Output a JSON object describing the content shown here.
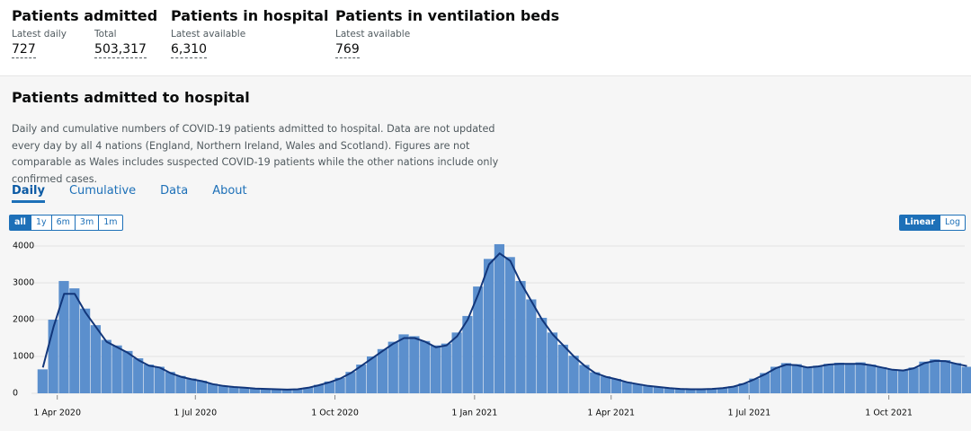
{
  "header": {
    "metrics": [
      {
        "title": "Patients admitted",
        "items": [
          {
            "label": "Latest daily",
            "value": "727"
          },
          {
            "label": "Total",
            "value": "503,317"
          }
        ]
      },
      {
        "title": "Patients in hospital",
        "items": [
          {
            "label": "Latest available",
            "value": "6,310"
          }
        ]
      },
      {
        "title": "Patients in ventilation beds",
        "items": [
          {
            "label": "Latest available",
            "value": "769"
          }
        ]
      }
    ]
  },
  "card": {
    "title": "Patients admitted to hospital",
    "description": "Daily and cumulative numbers of COVID-19 patients admitted to hospital. Data are not updated every day by all 4 nations (England, Northern Ireland, Wales and Scotland). Figures are not comparable as Wales includes suspected COVID-19 patients while the other nations include only confirmed cases.",
    "tabs": [
      "Daily",
      "Cumulative",
      "Data",
      "About"
    ],
    "range_buttons": [
      "all",
      "1y",
      "6m",
      "3m",
      "1m"
    ],
    "scale_buttons": [
      "Linear",
      "Log"
    ]
  },
  "chart_data": {
    "type": "bar",
    "x": [
      "2020-03-19",
      "2020-03-26",
      "2020-04-02",
      "2020-04-09",
      "2020-04-16",
      "2020-04-23",
      "2020-04-30",
      "2020-05-07",
      "2020-05-14",
      "2020-05-21",
      "2020-05-28",
      "2020-06-04",
      "2020-06-11",
      "2020-06-18",
      "2020-06-25",
      "2020-07-02",
      "2020-07-09",
      "2020-07-16",
      "2020-07-23",
      "2020-07-30",
      "2020-08-06",
      "2020-08-13",
      "2020-08-20",
      "2020-08-27",
      "2020-09-03",
      "2020-09-10",
      "2020-09-17",
      "2020-09-24",
      "2020-10-01",
      "2020-10-08",
      "2020-10-15",
      "2020-10-22",
      "2020-10-29",
      "2020-11-05",
      "2020-11-12",
      "2020-11-19",
      "2020-11-26",
      "2020-12-03",
      "2020-12-10",
      "2020-12-17",
      "2020-12-24",
      "2020-12-31",
      "2021-01-07",
      "2021-01-14",
      "2021-01-21",
      "2021-01-28",
      "2021-02-04",
      "2021-02-11",
      "2021-02-18",
      "2021-02-25",
      "2021-03-04",
      "2021-03-11",
      "2021-03-18",
      "2021-03-25",
      "2021-04-01",
      "2021-04-08",
      "2021-04-15",
      "2021-04-22",
      "2021-04-29",
      "2021-05-06",
      "2021-05-13",
      "2021-05-20",
      "2021-05-27",
      "2021-06-03",
      "2021-06-10",
      "2021-06-17",
      "2021-06-24",
      "2021-07-01",
      "2021-07-08",
      "2021-07-15",
      "2021-07-22",
      "2021-07-29",
      "2021-08-05",
      "2021-08-12",
      "2021-08-19",
      "2021-08-26",
      "2021-09-02",
      "2021-09-09",
      "2021-09-16",
      "2021-09-23",
      "2021-09-30",
      "2021-10-07",
      "2021-10-14",
      "2021-10-21",
      "2021-10-28",
      "2021-11-04",
      "2021-11-11",
      "2021-11-18"
    ],
    "series": [
      {
        "type": "bar",
        "color": "#5b8fcd",
        "values": [
          650,
          2000,
          3050,
          2850,
          2300,
          1850,
          1450,
          1300,
          1150,
          950,
          780,
          720,
          580,
          470,
          400,
          340,
          260,
          210,
          175,
          150,
          135,
          120,
          110,
          100,
          115,
          160,
          230,
          320,
          420,
          580,
          780,
          1000,
          1200,
          1400,
          1600,
          1550,
          1420,
          1300,
          1350,
          1650,
          2100,
          2900,
          3650,
          4050,
          3700,
          3050,
          2550,
          2050,
          1650,
          1320,
          1020,
          770,
          570,
          460,
          390,
          310,
          255,
          205,
          170,
          140,
          120,
          110,
          110,
          120,
          145,
          190,
          270,
          400,
          550,
          720,
          820,
          790,
          720,
          750,
          800,
          830,
          820,
          840,
          780,
          710,
          650,
          630,
          700,
          860,
          920,
          900,
          820,
          720
        ]
      },
      {
        "type": "line",
        "color": "#12367a",
        "values": [
          700,
          1800,
          2700,
          2700,
          2200,
          1800,
          1400,
          1250,
          1100,
          900,
          750,
          700,
          550,
          450,
          380,
          330,
          250,
          200,
          170,
          150,
          130,
          120,
          110,
          100,
          110,
          150,
          220,
          300,
          400,
          550,
          750,
          950,
          1150,
          1350,
          1500,
          1500,
          1400,
          1250,
          1300,
          1550,
          2000,
          2700,
          3500,
          3800,
          3600,
          3000,
          2500,
          2000,
          1600,
          1300,
          1000,
          750,
          550,
          450,
          380,
          300,
          250,
          200,
          170,
          140,
          120,
          110,
          110,
          120,
          140,
          180,
          260,
          380,
          520,
          680,
          780,
          760,
          700,
          730,
          780,
          800,
          800,
          800,
          760,
          700,
          640,
          620,
          680,
          820,
          880,
          870,
          800,
          740
        ]
      }
    ],
    "xlim": [
      "2020-03-15",
      "2021-11-20"
    ],
    "xticks": [
      {
        "value": "2020-04-01",
        "label": "1 Apr 2020"
      },
      {
        "value": "2020-07-01",
        "label": "1 Jul 2020"
      },
      {
        "value": "2020-10-01",
        "label": "1 Oct 2020"
      },
      {
        "value": "2021-01-01",
        "label": "1 Jan 2021"
      },
      {
        "value": "2021-04-01",
        "label": "1 Apr 2021"
      },
      {
        "value": "2021-07-01",
        "label": "1 Jul 2021"
      },
      {
        "value": "2021-10-01",
        "label": "1 Oct 2021"
      }
    ],
    "ylim": [
      0,
      4200
    ],
    "yticks": [
      0,
      1000,
      2000,
      3000,
      4000
    ],
    "grid": true
  }
}
